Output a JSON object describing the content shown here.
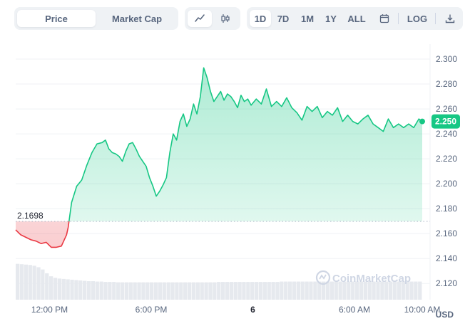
{
  "toolbar": {
    "metric_tabs": [
      "Price",
      "Market Cap"
    ],
    "active_metric": "Price",
    "chart_style_icons": [
      "line-chart-icon",
      "candlestick-icon"
    ],
    "ranges": [
      "1D",
      "7D",
      "1M",
      "1Y",
      "ALL"
    ],
    "active_range": "1D",
    "calendar_icon": "calendar-icon",
    "log_label": "LOG",
    "download_icon": "download-icon"
  },
  "watermark": "CoinMarketCap",
  "currency": "USD",
  "colors": {
    "up": "#16c784",
    "down": "#ea3943",
    "grid": "#eff2f5",
    "volume": "#e6e9ee"
  },
  "chart_data": {
    "type": "area",
    "ylim": [
      2.107,
      2.312
    ],
    "yticks": [
      "2.300",
      "2.280",
      "2.260",
      "2.240",
      "2.220",
      "2.200",
      "2.180",
      "2.160",
      "2.140",
      "2.120"
    ],
    "xticks": [
      {
        "label": "12:00 PM",
        "hour": 2.0
      },
      {
        "label": "6:00 PM",
        "hour": 8.0
      },
      {
        "label": "6",
        "hour": 14.0,
        "bold": true
      },
      {
        "label": "6:00 AM",
        "hour": 20.0
      },
      {
        "label": "10:00 AM",
        "hour": 24.0
      }
    ],
    "baseline": 2.1698,
    "baseline_label": "2.1698",
    "current_price": 2.25,
    "current_label": "2.250",
    "x_hours": [
      0.0,
      0.3,
      0.6,
      0.9,
      1.2,
      1.5,
      1.8,
      2.1,
      2.4,
      2.7,
      3.0,
      3.1,
      3.3,
      3.6,
      3.9,
      4.2,
      4.5,
      4.8,
      5.1,
      5.3,
      5.5,
      5.7,
      5.9,
      6.1,
      6.3,
      6.5,
      6.7,
      6.9,
      7.1,
      7.3,
      7.5,
      7.7,
      7.9,
      8.1,
      8.3,
      8.5,
      8.7,
      8.9,
      9.1,
      9.3,
      9.5,
      9.7,
      9.9,
      10.1,
      10.3,
      10.5,
      10.7,
      10.9,
      11.1,
      11.3,
      11.5,
      11.7,
      11.9,
      12.1,
      12.3,
      12.5,
      12.7,
      12.9,
      13.1,
      13.3,
      13.5,
      13.7,
      13.9,
      14.2,
      14.5,
      14.8,
      15.1,
      15.4,
      15.7,
      16.0,
      16.3,
      16.6,
      16.9,
      17.2,
      17.5,
      17.8,
      18.1,
      18.4,
      18.7,
      19.0,
      19.3,
      19.6,
      19.9,
      20.2,
      20.5,
      20.8,
      21.1,
      21.4,
      21.7,
      22.0,
      22.3,
      22.6,
      22.9,
      23.2,
      23.5,
      23.8,
      24.0
    ],
    "prices": [
      2.163,
      2.159,
      2.157,
      2.155,
      2.154,
      2.152,
      2.153,
      2.149,
      2.149,
      2.15,
      2.159,
      2.165,
      2.185,
      2.198,
      2.203,
      2.215,
      2.225,
      2.232,
      2.233,
      2.235,
      2.228,
      2.225,
      2.224,
      2.222,
      2.218,
      2.226,
      2.232,
      2.233,
      2.228,
      2.222,
      2.218,
      2.214,
      2.205,
      2.198,
      2.19,
      2.194,
      2.199,
      2.205,
      2.225,
      2.24,
      2.235,
      2.25,
      2.256,
      2.246,
      2.252,
      2.264,
      2.256,
      2.27,
      2.293,
      2.285,
      2.274,
      2.266,
      2.27,
      2.274,
      2.267,
      2.272,
      2.27,
      2.266,
      2.261,
      2.271,
      2.266,
      2.268,
      2.263,
      2.268,
      2.264,
      2.276,
      2.262,
      2.266,
      2.262,
      2.269,
      2.261,
      2.257,
      2.251,
      2.262,
      2.258,
      2.262,
      2.253,
      2.258,
      2.255,
      2.261,
      2.25,
      2.255,
      2.25,
      2.248,
      2.252,
      2.255,
      2.248,
      2.245,
      2.242,
      2.252,
      2.245,
      2.248,
      2.245,
      2.248,
      2.245,
      2.252,
      2.25
    ],
    "volume": [
      0.95,
      0.94,
      0.93,
      0.92,
      0.9,
      0.86,
      0.8,
      0.7,
      0.62,
      0.58,
      0.56,
      0.55,
      0.54,
      0.53,
      0.52,
      0.51,
      0.5,
      0.49,
      0.49,
      0.48,
      0.48,
      0.47,
      0.47,
      0.47,
      0.46,
      0.46,
      0.46,
      0.46,
      0.46,
      0.46,
      0.46,
      0.46,
      0.46,
      0.46,
      0.46,
      0.46,
      0.46,
      0.46,
      0.46,
      0.46,
      0.46,
      0.46,
      0.46,
      0.46,
      0.46,
      0.46,
      0.46,
      0.46,
      0.47,
      0.47,
      0.47,
      0.47,
      0.47,
      0.47,
      0.47,
      0.47,
      0.47,
      0.47,
      0.47,
      0.47,
      0.47,
      0.47,
      0.47,
      0.48,
      0.48,
      0.48,
      0.48,
      0.48,
      0.48,
      0.48,
      0.48,
      0.48,
      0.48,
      0.48,
      0.48,
      0.48,
      0.48,
      0.48,
      0.48,
      0.48,
      0.48,
      0.48,
      0.48,
      0.48,
      0.48,
      0.48,
      0.48,
      0.48,
      0.48,
      0.48,
      0.48,
      0.48,
      0.48,
      0.48,
      0.48,
      0.48,
      0.48
    ]
  }
}
